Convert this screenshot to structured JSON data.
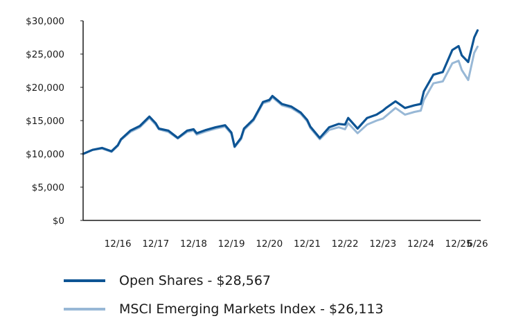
{
  "chart_data": {
    "type": "line",
    "y_tick_labels": [
      "$0",
      "$5,000",
      "$10,000",
      "$15,000",
      "$20,000",
      "$25,000",
      "$30,000"
    ],
    "y_ticks": [
      0,
      5000,
      10000,
      15000,
      20000,
      25000,
      30000
    ],
    "ylim": [
      0,
      30000
    ],
    "x_tick_labels": [
      "12/16",
      "12/17",
      "12/18",
      "12/19",
      "12/20",
      "12/21",
      "12/22",
      "12/23",
      "12/24",
      "12/25",
      "6/26"
    ],
    "x_ticks": [
      2016.917,
      2017.917,
      2018.917,
      2019.917,
      2020.917,
      2021.917,
      2022.917,
      2023.917,
      2024.917,
      2025.917,
      2026.417
    ],
    "xlim": [
      2016.0,
      2026.5
    ],
    "grid": false,
    "legend_position": "bottom",
    "series": [
      {
        "name": "Open Shares - $28,567",
        "color": "#0d5494",
        "x": [
          2016.0,
          2016.25,
          2016.5,
          2016.75,
          2016.917,
          2017.0,
          2017.25,
          2017.5,
          2017.75,
          2017.917,
          2018.0,
          2018.25,
          2018.5,
          2018.75,
          2018.917,
          2019.0,
          2019.25,
          2019.5,
          2019.75,
          2019.917,
          2020.0,
          2020.17,
          2020.25,
          2020.5,
          2020.75,
          2020.917,
          2021.0,
          2021.25,
          2021.5,
          2021.75,
          2021.917,
          2022.0,
          2022.25,
          2022.5,
          2022.75,
          2022.917,
          2023.0,
          2023.25,
          2023.5,
          2023.75,
          2023.917,
          2024.0,
          2024.25,
          2024.5,
          2024.75,
          2024.917,
          2025.0,
          2025.25,
          2025.5,
          2025.75,
          2025.917,
          2026.0,
          2026.17,
          2026.33,
          2026.417
        ],
        "values": [
          10000,
          10600,
          10900,
          10400,
          11300,
          12200,
          13500,
          14200,
          15600,
          14600,
          13800,
          13500,
          12400,
          13500,
          13700,
          13100,
          13600,
          14000,
          14300,
          13200,
          11100,
          12400,
          13800,
          15200,
          17800,
          18100,
          18700,
          17500,
          17100,
          16200,
          15100,
          14100,
          12400,
          14000,
          14500,
          14400,
          15400,
          13800,
          15400,
          15900,
          16500,
          16900,
          17900,
          16900,
          17300,
          17500,
          19400,
          21900,
          22300,
          25600,
          26200,
          24800,
          23800,
          27500,
          28567
        ]
      },
      {
        "name": "MSCI Emerging Markets Index - $26,113",
        "color": "#98b8d6",
        "x": [
          2016.0,
          2016.25,
          2016.5,
          2016.75,
          2016.917,
          2017.0,
          2017.25,
          2017.5,
          2017.75,
          2017.917,
          2018.0,
          2018.25,
          2018.5,
          2018.75,
          2018.917,
          2019.0,
          2019.25,
          2019.5,
          2019.75,
          2019.917,
          2020.0,
          2020.17,
          2020.25,
          2020.5,
          2020.75,
          2020.917,
          2021.0,
          2021.25,
          2021.5,
          2021.75,
          2021.917,
          2022.0,
          2022.25,
          2022.5,
          2022.75,
          2022.917,
          2023.0,
          2023.25,
          2023.5,
          2023.75,
          2023.917,
          2024.0,
          2024.25,
          2024.5,
          2024.75,
          2024.917,
          2025.0,
          2025.25,
          2025.5,
          2025.75,
          2025.917,
          2026.0,
          2026.17,
          2026.33,
          2026.417
        ],
        "values": [
          10000,
          10600,
          10800,
          10300,
          11200,
          12100,
          13300,
          14000,
          15400,
          14400,
          13700,
          13300,
          12300,
          13300,
          13500,
          12900,
          13400,
          13800,
          14100,
          13000,
          11000,
          12200,
          13600,
          15000,
          17600,
          17900,
          18500,
          17300,
          16900,
          16000,
          14900,
          13900,
          12200,
          13600,
          14000,
          13700,
          14600,
          13100,
          14400,
          15000,
          15300,
          15700,
          16900,
          15900,
          16300,
          16500,
          18100,
          20600,
          20900,
          23600,
          24000,
          22600,
          21100,
          25200,
          26113
        ]
      }
    ]
  }
}
